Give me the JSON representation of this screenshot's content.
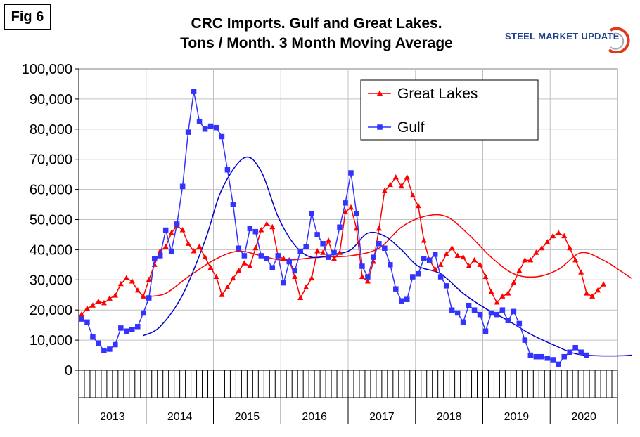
{
  "fig_label": "Fig 6",
  "brand": {
    "name": "STEEL MARKET UPDATE",
    "accent_color": "#e03a1e",
    "text_color": "#1e3f8f"
  },
  "chart_data": {
    "type": "line",
    "title_line1": "CRC Imports. Gulf and Great Lakes.",
    "title_line2": "Tons / Month. 3 Month Moving Average",
    "xlabel": "",
    "ylabel": "",
    "ylim": [
      0,
      100000
    ],
    "yticks": [
      "0",
      "10,000",
      "20,000",
      "30,000",
      "40,000",
      "50,000",
      "60,000",
      "70,000",
      "80,000",
      "90,000",
      "100,000"
    ],
    "x_start": "2013-01",
    "x_end": "2020-12",
    "years": [
      "2013",
      "2014",
      "2015",
      "2016",
      "2017",
      "2018",
      "2019",
      "2020"
    ],
    "grid": true,
    "legend_position": "top-right",
    "series": [
      {
        "name": "Great Lakes",
        "color": "#ff0000",
        "marker": "triangle",
        "start": "2013-01",
        "values": [
          18500,
          20500,
          21500,
          22800,
          22300,
          23800,
          24800,
          28600,
          30600,
          29500,
          26500,
          24500,
          30000,
          35000,
          39500,
          41000,
          45500,
          48000,
          46500,
          42000,
          39500,
          41000,
          37500,
          34000,
          31000,
          25000,
          27500,
          30500,
          33000,
          35500,
          34500,
          40500,
          46500,
          48500,
          47500,
          38000,
          37000,
          36500,
          31000,
          24000,
          27500,
          30500,
          39500,
          39000,
          43000,
          37000,
          39000,
          52500,
          54000,
          47000,
          31000,
          29500,
          36000,
          47000,
          59500,
          61500,
          64000,
          61000,
          64000,
          58000,
          54500,
          43000,
          36500,
          33500,
          35000,
          38500,
          40500,
          38000,
          37500,
          34500,
          36500,
          35000,
          31000,
          26000,
          22500,
          24500,
          25500,
          29000,
          33000,
          36500,
          36500,
          39000,
          40500,
          42500,
          44500,
          45500,
          44500,
          40500,
          36500,
          32500,
          25500,
          24500,
          26500,
          28500
        ]
      },
      {
        "name": "Gulf",
        "color": "#3333ff",
        "marker": "square",
        "start": "2013-01",
        "values": [
          17000,
          16000,
          11000,
          9000,
          6500,
          7000,
          8500,
          14000,
          13000,
          13500,
          14500,
          19000,
          24000,
          37000,
          38000,
          46500,
          39500,
          48500,
          61000,
          79000,
          92500,
          82500,
          80000,
          81000,
          80500,
          77500,
          66500,
          55000,
          40500,
          38000,
          47000,
          46000,
          38000,
          37000,
          34000,
          38000,
          29000,
          36000,
          33000,
          39500,
          41000,
          52000,
          45000,
          42000,
          37500,
          39000,
          47500,
          55500,
          65500,
          52000,
          34500,
          31000,
          37500,
          42000,
          40500,
          35000,
          27000,
          23000,
          23500,
          31000,
          32000,
          37000,
          36500,
          38500,
          31000,
          28000,
          20000,
          19000,
          16000,
          21500,
          20000,
          18500,
          13000,
          19000,
          18500,
          20000,
          16500,
          19500,
          15500,
          10000,
          5000,
          4500,
          4500,
          4000,
          3500,
          2000,
          4500,
          6000,
          7500,
          6000,
          5000
        ]
      }
    ],
    "trend_lines": [
      {
        "series": "Great Lakes",
        "color": "#ff0000",
        "points": [
          [
            "2014-01",
            24500
          ],
          [
            "2014-04",
            25500
          ],
          [
            "2014-08",
            31000
          ],
          [
            "2015-01",
            37000
          ],
          [
            "2015-05",
            39500
          ],
          [
            "2015-09",
            38000
          ],
          [
            "2016-01",
            36500
          ],
          [
            "2016-07",
            37500
          ],
          [
            "2017-01",
            38000
          ],
          [
            "2017-06",
            40500
          ],
          [
            "2017-10",
            47500
          ],
          [
            "2018-02",
            51000
          ],
          [
            "2018-06",
            51000
          ],
          [
            "2018-10",
            45000
          ],
          [
            "2019-02",
            37500
          ],
          [
            "2019-06",
            32000
          ],
          [
            "2019-10",
            31000
          ],
          [
            "2020-02",
            33500
          ],
          [
            "2020-06",
            39000
          ],
          [
            "2020-10",
            36500
          ],
          [
            "2021-01",
            33000
          ],
          [
            "2021-03",
            30500
          ]
        ]
      },
      {
        "series": "Gulf",
        "color": "#0000cc",
        "points": [
          [
            "2013-12",
            11500
          ],
          [
            "2014-03",
            14500
          ],
          [
            "2014-07",
            25000
          ],
          [
            "2014-11",
            43000
          ],
          [
            "2015-02",
            60000
          ],
          [
            "2015-06",
            70500
          ],
          [
            "2015-09",
            66000
          ],
          [
            "2015-12",
            51000
          ],
          [
            "2016-03",
            41500
          ],
          [
            "2016-06",
            37500
          ],
          [
            "2016-10",
            38500
          ],
          [
            "2017-01",
            40000
          ],
          [
            "2017-04",
            45500
          ],
          [
            "2017-07",
            44500
          ],
          [
            "2017-10",
            40000
          ],
          [
            "2018-01",
            34500
          ],
          [
            "2018-05",
            32000
          ],
          [
            "2018-09",
            25500
          ],
          [
            "2019-01",
            20500
          ],
          [
            "2019-05",
            16500
          ],
          [
            "2019-09",
            12000
          ],
          [
            "2020-01",
            8500
          ],
          [
            "2020-05",
            5500
          ],
          [
            "2020-09",
            4800
          ],
          [
            "2021-01",
            4800
          ],
          [
            "2021-03",
            5000
          ]
        ]
      }
    ]
  }
}
